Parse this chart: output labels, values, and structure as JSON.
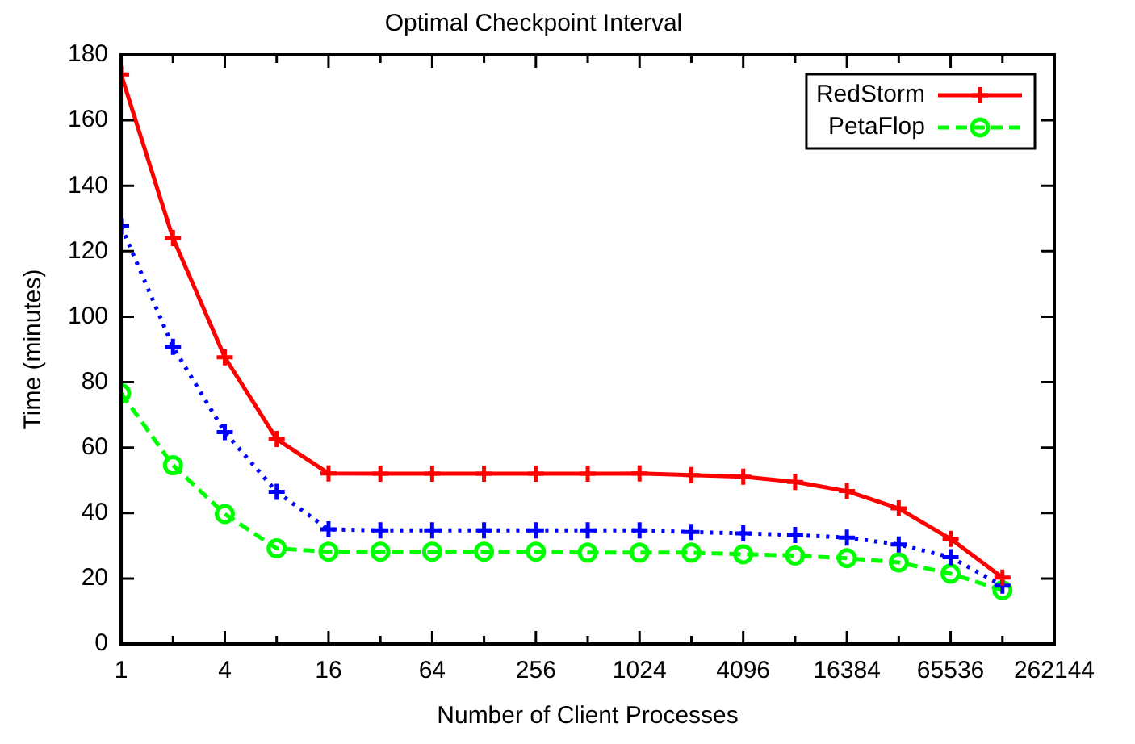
{
  "chart_data": {
    "type": "line",
    "title": "Optimal Checkpoint Interval",
    "xlabel": "Number of Client Processes",
    "ylabel": "Time (minutes)",
    "x": [
      1,
      2,
      4,
      8,
      16,
      32,
      64,
      128,
      256,
      512,
      1024,
      2048,
      4096,
      8192,
      16384,
      32768,
      65536,
      131072
    ],
    "series": [
      {
        "name": "RedStorm",
        "color": "#ff0000",
        "marker": "cross",
        "line_style": "solid",
        "values": [
          174,
          124,
          87.6,
          62.6,
          52.1,
          52,
          52,
          52,
          52,
          52,
          52.1,
          51.6,
          51.1,
          49.5,
          46.7,
          41.4,
          32.1,
          20.3
        ]
      },
      {
        "color": "#0000ff",
        "marker": "cross",
        "line_style": "dotted",
        "values": [
          127.6,
          90.8,
          64.7,
          46.5,
          35,
          34.7,
          34.7,
          34.7,
          34.7,
          34.7,
          34.7,
          34.2,
          33.8,
          33.3,
          32.5,
          30.4,
          26.5,
          17.8
        ]
      },
      {
        "name": "PetaFlop",
        "color": "#00ff00",
        "marker": "circle",
        "line_style": "dashed",
        "values": [
          76.6,
          54.6,
          39.7,
          29.2,
          28.2,
          28.2,
          28.2,
          28.2,
          28.2,
          27.9,
          27.9,
          27.9,
          27.4,
          27,
          26.2,
          24.9,
          21.5,
          16.4
        ]
      }
    ],
    "log": "x",
    "xlim": [
      1,
      262144
    ],
    "xticks": [
      1,
      {
        "value": 2,
        "label": null
      },
      4,
      {
        "value": 8,
        "label": null
      },
      16,
      {
        "value": 32,
        "label": null
      },
      64,
      {
        "value": 128,
        "label": null
      },
      256,
      {
        "value": 512,
        "label": null
      },
      1024,
      {
        "value": 2048,
        "label": null
      },
      4096,
      {
        "value": 8192,
        "label": null
      },
      16384,
      {
        "value": 32768,
        "label": null
      },
      65536,
      {
        "value": 131072,
        "label": null
      },
      262144
    ],
    "ylim": [
      0,
      180
    ],
    "yticks": [
      0,
      20,
      40,
      60,
      80,
      100,
      120,
      140,
      160,
      180
    ],
    "grid": false,
    "legend": "top right"
  }
}
